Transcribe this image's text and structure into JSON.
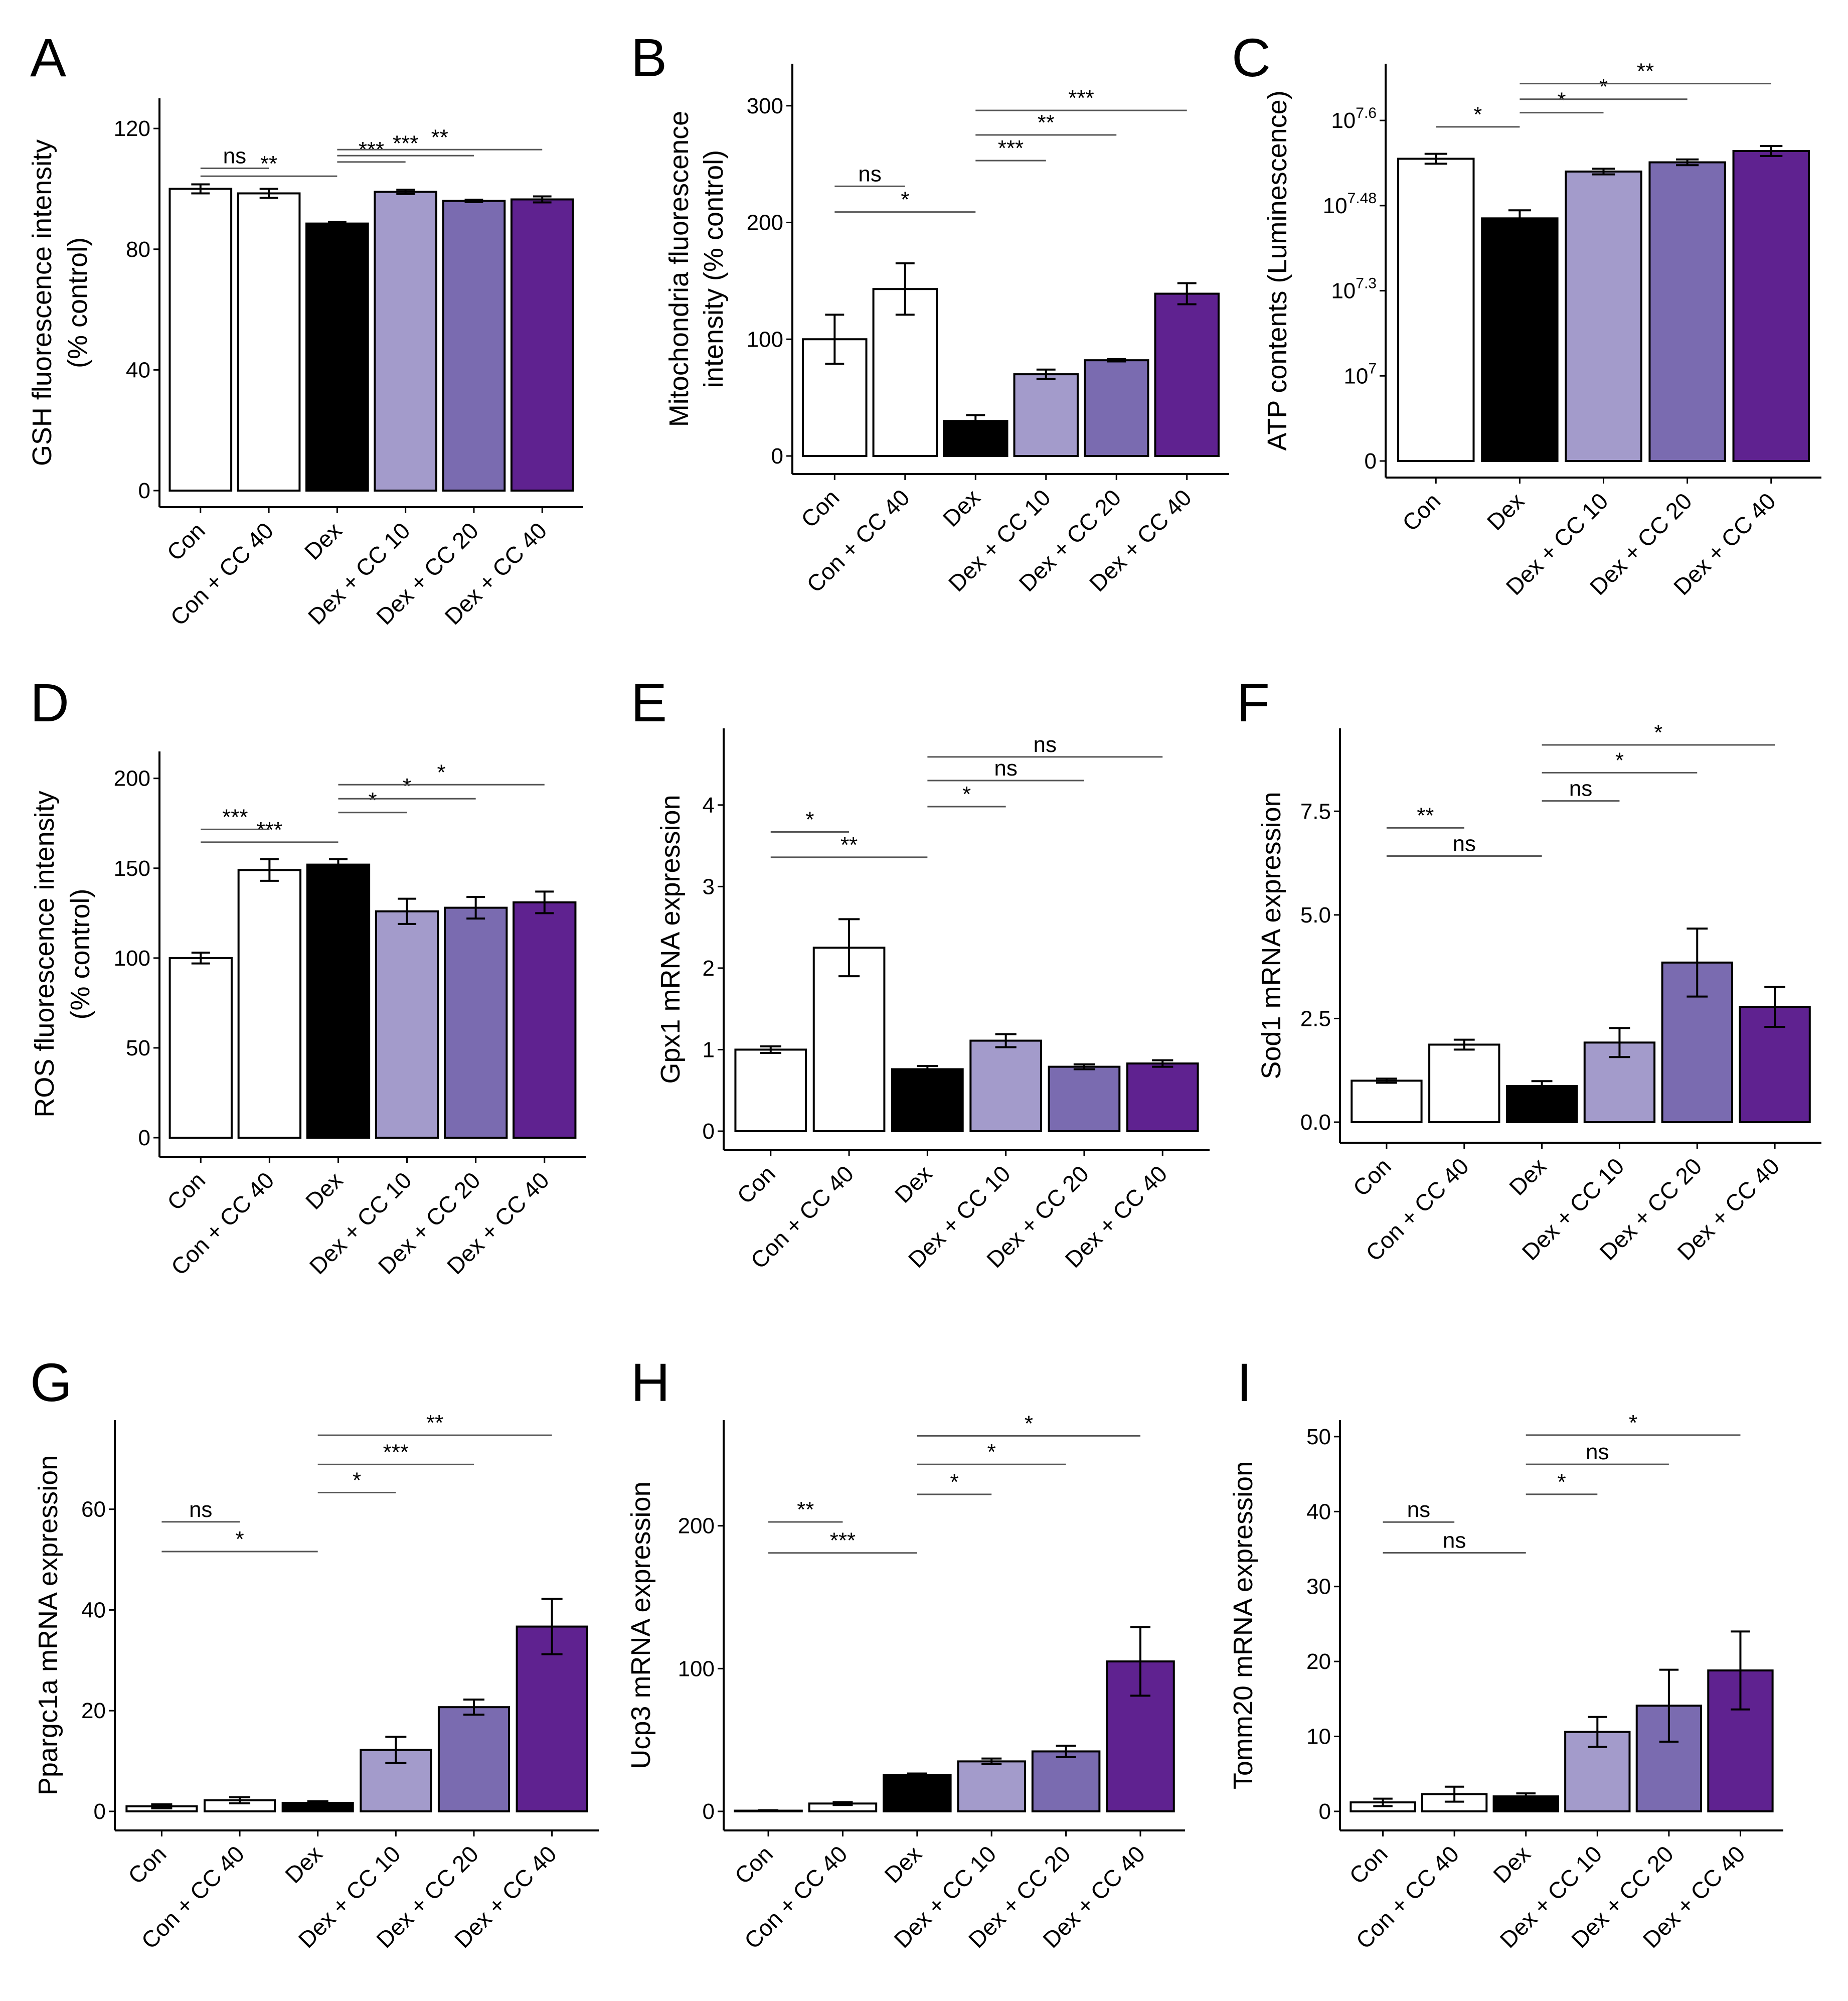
{
  "chart_data": [
    {
      "id": "A",
      "type": "bar",
      "letter": "A",
      "ylabel": [
        "GSH fluorescence intensity",
        "(% control)"
      ],
      "categories": [
        "Con",
        "Con + CC 40",
        "Dex",
        "Dex + CC 10",
        "Dex + CC 20",
        "Dex + CC 40"
      ],
      "colors": [
        "#ffffff",
        "#ffffff",
        "#000000",
        "#a39bcb",
        "#7a6bb0",
        "#5f2290"
      ],
      "values": [
        100,
        98.5,
        88.5,
        99,
        96,
        96.5
      ],
      "errors": [
        1.5,
        1.5,
        0.5,
        0.7,
        0.4,
        1.0
      ],
      "ylim": [
        0,
        130
      ],
      "yticks": [
        {
          "value": 0,
          "label": "0"
        },
        {
          "value": 40,
          "label": "40"
        },
        {
          "value": 80,
          "label": "80"
        },
        {
          "value": 120,
          "label": "120"
        }
      ],
      "comparisons": [
        {
          "from": 0,
          "to": 2,
          "y": 104.2,
          "label": "**"
        },
        {
          "from": 0,
          "to": 1,
          "y": 106.8,
          "label": "ns"
        },
        {
          "from": 2,
          "to": 3,
          "y": 108.9,
          "label": "***"
        },
        {
          "from": 2,
          "to": 4,
          "y": 111,
          "label": "***"
        },
        {
          "from": 2,
          "to": 5,
          "y": 113,
          "label": "**"
        }
      ]
    },
    {
      "id": "B",
      "type": "bar",
      "letter": "B",
      "ylabel": [
        "Mitochondria fluorescence",
        "intensity (% control)"
      ],
      "categories": [
        "Con",
        "Con + CC 40",
        "Dex",
        "Dex + CC 10",
        "Dex + CC 20",
        "Dex + CC 40"
      ],
      "colors": [
        "#ffffff",
        "#ffffff",
        "#000000",
        "#a39bcb",
        "#7a6bb0",
        "#5f2290"
      ],
      "values": [
        100,
        143,
        30,
        70,
        82,
        139
      ],
      "errors": [
        21,
        22,
        5,
        4,
        1,
        9
      ],
      "ylim": [
        0,
        336
      ],
      "yticks": [
        {
          "value": 0,
          "label": "0"
        },
        {
          "value": 100,
          "label": "100"
        },
        {
          "value": 200,
          "label": "200"
        },
        {
          "value": 300,
          "label": "300"
        }
      ],
      "comparisons": [
        {
          "from": 0,
          "to": 2,
          "y": 209,
          "label": "*"
        },
        {
          "from": 0,
          "to": 1,
          "y": 231,
          "label": "ns"
        },
        {
          "from": 2,
          "to": 3,
          "y": 253,
          "label": "***"
        },
        {
          "from": 2,
          "to": 4,
          "y": 275,
          "label": "**"
        },
        {
          "from": 2,
          "to": 5,
          "y": 296,
          "label": "***"
        }
      ]
    },
    {
      "id": "C",
      "type": "bar",
      "letter": "C",
      "ylabel": [
        "ATP contents (Luminescence)"
      ],
      "scale": "log10-exponent, piecewise between ticks",
      "categories": [
        "Con",
        "Dex",
        "Dex + CC 10",
        "Dex + CC 20",
        "Dex + CC 40"
      ],
      "colors": [
        "#ffffff",
        "#000000",
        "#a39bcb",
        "#7a6bb0",
        "#5f2290"
      ],
      "values": [
        7.546,
        7.453,
        7.528,
        7.541,
        7.557
      ],
      "errors": [
        0.007,
        0.017,
        0.004,
        0.004,
        0.007
      ],
      "ylim": [
        0,
        7.68
      ],
      "yticks": [
        {
          "value": 0,
          "label": "0"
        },
        {
          "value": 7,
          "label": "10",
          "sup": "7"
        },
        {
          "value": 7.3,
          "label": "10",
          "sup": "7.3"
        },
        {
          "value": 7.48,
          "label": "10",
          "sup": "7.48"
        },
        {
          "value": 7.6,
          "label": "10",
          "sup": "7.6"
        }
      ],
      "comparisons": [
        {
          "from": 0,
          "to": 1,
          "y": 7.591,
          "label": "*"
        },
        {
          "from": 1,
          "to": 2,
          "y": 7.611,
          "label": "*"
        },
        {
          "from": 1,
          "to": 3,
          "y": 7.63,
          "label": "*"
        },
        {
          "from": 1,
          "to": 4,
          "y": 7.652,
          "label": "**"
        }
      ]
    },
    {
      "id": "D",
      "type": "bar",
      "letter": "D",
      "ylabel": [
        "ROS fluorescence intensity",
        "(% control)"
      ],
      "categories": [
        "Con",
        "Con + CC 40",
        "Dex",
        "Dex + CC 10",
        "Dex + CC 20",
        "Dex + CC 40"
      ],
      "colors": [
        "#ffffff",
        "#ffffff",
        "#000000",
        "#a39bcb",
        "#7a6bb0",
        "#5f2290"
      ],
      "values": [
        100,
        149,
        152,
        126,
        128,
        131
      ],
      "errors": [
        3,
        6,
        3,
        7,
        6,
        6
      ],
      "ylim": [
        0,
        215
      ],
      "yticks": [
        {
          "value": 0,
          "label": "0"
        },
        {
          "value": 50,
          "label": "50"
        },
        {
          "value": 100,
          "label": "100"
        },
        {
          "value": 150,
          "label": "150"
        },
        {
          "value": 200,
          "label": "200"
        }
      ],
      "comparisons": [
        {
          "from": 0,
          "to": 2,
          "y": 164.5,
          "label": "***"
        },
        {
          "from": 0,
          "to": 1,
          "y": 171.6,
          "label": "***"
        },
        {
          "from": 2,
          "to": 3,
          "y": 181,
          "label": "*"
        },
        {
          "from": 2,
          "to": 4,
          "y": 188.7,
          "label": "*"
        },
        {
          "from": 2,
          "to": 5,
          "y": 196.5,
          "label": "*"
        }
      ]
    },
    {
      "id": "E",
      "type": "bar",
      "letter": "E",
      "ylabel": [
        "Gpx1 mRNA expression"
      ],
      "categories": [
        "Con",
        "Con + CC 40",
        "Dex",
        "Dex + CC 10",
        "Dex + CC 20",
        "Dex + CC 40"
      ],
      "colors": [
        "#ffffff",
        "#ffffff",
        "#000000",
        "#a39bcb",
        "#7a6bb0",
        "#5f2290"
      ],
      "values": [
        1.0,
        2.25,
        0.76,
        1.11,
        0.79,
        0.83
      ],
      "errors": [
        0.04,
        0.35,
        0.04,
        0.08,
        0.03,
        0.04
      ],
      "ylim": [
        0,
        4.94
      ],
      "yticks": [
        {
          "value": 0,
          "label": "0"
        },
        {
          "value": 1,
          "label": "1"
        },
        {
          "value": 2,
          "label": "2"
        },
        {
          "value": 3,
          "label": "3"
        },
        {
          "value": 4,
          "label": "4"
        }
      ],
      "comparisons": [
        {
          "from": 0,
          "to": 2,
          "y": 3.36,
          "label": "**"
        },
        {
          "from": 0,
          "to": 1,
          "y": 3.67,
          "label": "*"
        },
        {
          "from": 2,
          "to": 3,
          "y": 3.98,
          "label": "*"
        },
        {
          "from": 2,
          "to": 4,
          "y": 4.3,
          "label": "ns"
        },
        {
          "from": 2,
          "to": 5,
          "y": 4.59,
          "label": "ns"
        }
      ]
    },
    {
      "id": "F",
      "type": "bar",
      "letter": "F",
      "ylabel": [
        "Sod1 mRNA expression"
      ],
      "categories": [
        "Con",
        "Con + CC 40",
        "Dex",
        "Dex + CC 10",
        "Dex + CC 20",
        "Dex + CC 40"
      ],
      "colors": [
        "#ffffff",
        "#ffffff",
        "#000000",
        "#a39bcb",
        "#7a6bb0",
        "#5f2290"
      ],
      "values": [
        1.0,
        1.87,
        0.87,
        1.92,
        3.85,
        2.78
      ],
      "errors": [
        0.05,
        0.12,
        0.12,
        0.35,
        0.82,
        0.48
      ],
      "ylim": [
        0,
        9.5
      ],
      "yticks": [
        {
          "value": 0,
          "label": "0.0"
        },
        {
          "value": 2.5,
          "label": "2.5"
        },
        {
          "value": 5,
          "label": "5.0"
        },
        {
          "value": 7.5,
          "label": "7.5"
        }
      ],
      "comparisons": [
        {
          "from": 0,
          "to": 2,
          "y": 6.42,
          "label": "ns"
        },
        {
          "from": 0,
          "to": 1,
          "y": 7.1,
          "label": "**"
        },
        {
          "from": 2,
          "to": 3,
          "y": 7.75,
          "label": "ns"
        },
        {
          "from": 2,
          "to": 4,
          "y": 8.43,
          "label": "*"
        },
        {
          "from": 2,
          "to": 5,
          "y": 9.1,
          "label": "*"
        }
      ]
    },
    {
      "id": "G",
      "type": "bar",
      "letter": "G",
      "ylabel": [
        "Ppargc1a mRNA expression"
      ],
      "categories": [
        "Con",
        "Con + CC 40",
        "Dex",
        "Dex + CC 10",
        "Dex + CC 20",
        "Dex + CC 40"
      ],
      "colors": [
        "#ffffff",
        "#ffffff",
        "#000000",
        "#a39bcb",
        "#7a6bb0",
        "#5f2290"
      ],
      "values": [
        1.0,
        2.2,
        1.7,
        12.2,
        20.7,
        36.7
      ],
      "errors": [
        0.4,
        0.6,
        0.3,
        2.6,
        1.5,
        5.5
      ],
      "ylim": [
        0,
        77.7
      ],
      "yticks": [
        {
          "value": 0,
          "label": "0"
        },
        {
          "value": 20,
          "label": "20"
        },
        {
          "value": 40,
          "label": "40"
        },
        {
          "value": 60,
          "label": "60"
        }
      ],
      "comparisons": [
        {
          "from": 0,
          "to": 2,
          "y": 51.6,
          "label": "*"
        },
        {
          "from": 0,
          "to": 1,
          "y": 57.5,
          "label": "ns"
        },
        {
          "from": 2,
          "to": 3,
          "y": 63.3,
          "label": "*"
        },
        {
          "from": 2,
          "to": 4,
          "y": 68.9,
          "label": "***"
        },
        {
          "from": 2,
          "to": 5,
          "y": 74.7,
          "label": "**"
        }
      ]
    },
    {
      "id": "H",
      "type": "bar",
      "letter": "H",
      "ylabel": [
        "Ucp3 mRNA expression"
      ],
      "categories": [
        "Con",
        "Con + CC 40",
        "Dex",
        "Dex + CC 10",
        "Dex + CC 20",
        "Dex + CC 40"
      ],
      "colors": [
        "#ffffff",
        "#ffffff",
        "#000000",
        "#a39bcb",
        "#7a6bb0",
        "#5f2290"
      ],
      "values": [
        0.5,
        5.5,
        25.5,
        35,
        42,
        105
      ],
      "errors": [
        0.3,
        1,
        1,
        2,
        4,
        24
      ],
      "ylim": [
        0,
        274
      ],
      "yticks": [
        {
          "value": 0,
          "label": "0"
        },
        {
          "value": 100,
          "label": "100"
        },
        {
          "value": 200,
          "label": "200"
        }
      ],
      "comparisons": [
        {
          "from": 0,
          "to": 2,
          "y": 181,
          "label": "***"
        },
        {
          "from": 0,
          "to": 1,
          "y": 202.7,
          "label": "**"
        },
        {
          "from": 2,
          "to": 3,
          "y": 222,
          "label": "*"
        },
        {
          "from": 2,
          "to": 4,
          "y": 243,
          "label": "*"
        },
        {
          "from": 2,
          "to": 5,
          "y": 263,
          "label": "*"
        }
      ]
    },
    {
      "id": "I",
      "type": "bar",
      "letter": "I",
      "ylabel": [
        "Tomm20 mRNA expression"
      ],
      "categories": [
        "Con",
        "Con + CC 40",
        "Dex",
        "Dex + CC 10",
        "Dex + CC 20",
        "Dex + CC 40"
      ],
      "colors": [
        "#ffffff",
        "#ffffff",
        "#000000",
        "#a39bcb",
        "#7a6bb0",
        "#5f2290"
      ],
      "values": [
        1.2,
        2.3,
        2.0,
        10.6,
        14.1,
        18.8
      ],
      "errors": [
        0.5,
        1.0,
        0.4,
        2.0,
        4.8,
        5.2
      ],
      "ylim": [
        0,
        52.2
      ],
      "yticks": [
        {
          "value": 0,
          "label": "0"
        },
        {
          "value": 10,
          "label": "10"
        },
        {
          "value": 20,
          "label": "20"
        },
        {
          "value": 30,
          "label": "30"
        },
        {
          "value": 40,
          "label": "40"
        },
        {
          "value": 50,
          "label": "50"
        }
      ],
      "comparisons": [
        {
          "from": 0,
          "to": 2,
          "y": 34.5,
          "label": "ns"
        },
        {
          "from": 0,
          "to": 1,
          "y": 38.6,
          "label": "ns"
        },
        {
          "from": 2,
          "to": 3,
          "y": 42.3,
          "label": "*"
        },
        {
          "from": 2,
          "to": 4,
          "y": 46.3,
          "label": "ns"
        },
        {
          "from": 2,
          "to": 5,
          "y": 50.2,
          "label": "*"
        }
      ]
    }
  ]
}
